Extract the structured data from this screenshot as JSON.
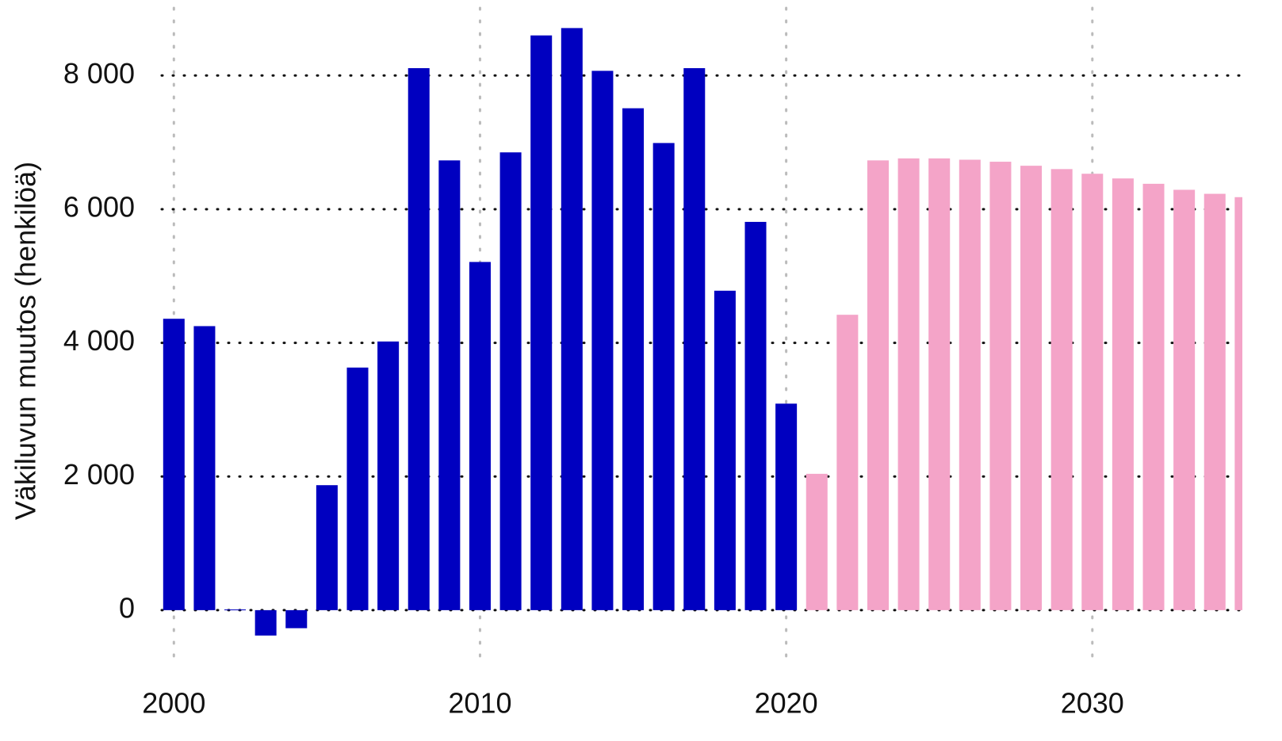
{
  "chart_data": {
    "type": "bar",
    "y_label": "Väkiluvun muutos (henkilöä)",
    "x": [
      2000,
      2001,
      2002,
      2003,
      2004,
      2005,
      2006,
      2007,
      2008,
      2009,
      2010,
      2011,
      2012,
      2013,
      2014,
      2015,
      2016,
      2017,
      2018,
      2019,
      2020,
      2021,
      2022,
      2023,
      2024,
      2025,
      2026,
      2027,
      2028,
      2029,
      2030,
      2031,
      2032,
      2033,
      2034,
      2035
    ],
    "series": [
      {
        "color": "#0000c0",
        "values": [
          4360,
          4250,
          10,
          -380,
          -270,
          1870,
          3630,
          4020,
          8110,
          6730,
          5210,
          6850,
          8600,
          8710,
          8070,
          7510,
          6990,
          8110,
          4780,
          5810,
          3090,
          null,
          null,
          null,
          null,
          null,
          null,
          null,
          null,
          null,
          null,
          null,
          null,
          null,
          null,
          null
        ]
      },
      {
        "color": "#f4a4c8",
        "values": [
          null,
          null,
          null,
          null,
          null,
          null,
          null,
          null,
          null,
          null,
          null,
          null,
          null,
          null,
          null,
          null,
          null,
          null,
          null,
          null,
          null,
          2040,
          4420,
          6730,
          6760,
          6760,
          6740,
          6710,
          6650,
          6600,
          6530,
          6460,
          6380,
          6290,
          6230,
          6180
        ]
      }
    ],
    "xlim": [
      1999.5,
      2034.9
    ],
    "xticks": [
      2000,
      2010,
      2020,
      2030
    ],
    "ylim": [
      -950,
      9130
    ],
    "yticks": [
      0,
      {
        "value": 2000,
        "label": "2 000"
      },
      {
        "value": 4000,
        "label": "4 000"
      },
      {
        "value": 6000,
        "label": "6 000"
      },
      {
        "value": 8000,
        "label": "8 000"
      }
    ],
    "grid": true
  }
}
